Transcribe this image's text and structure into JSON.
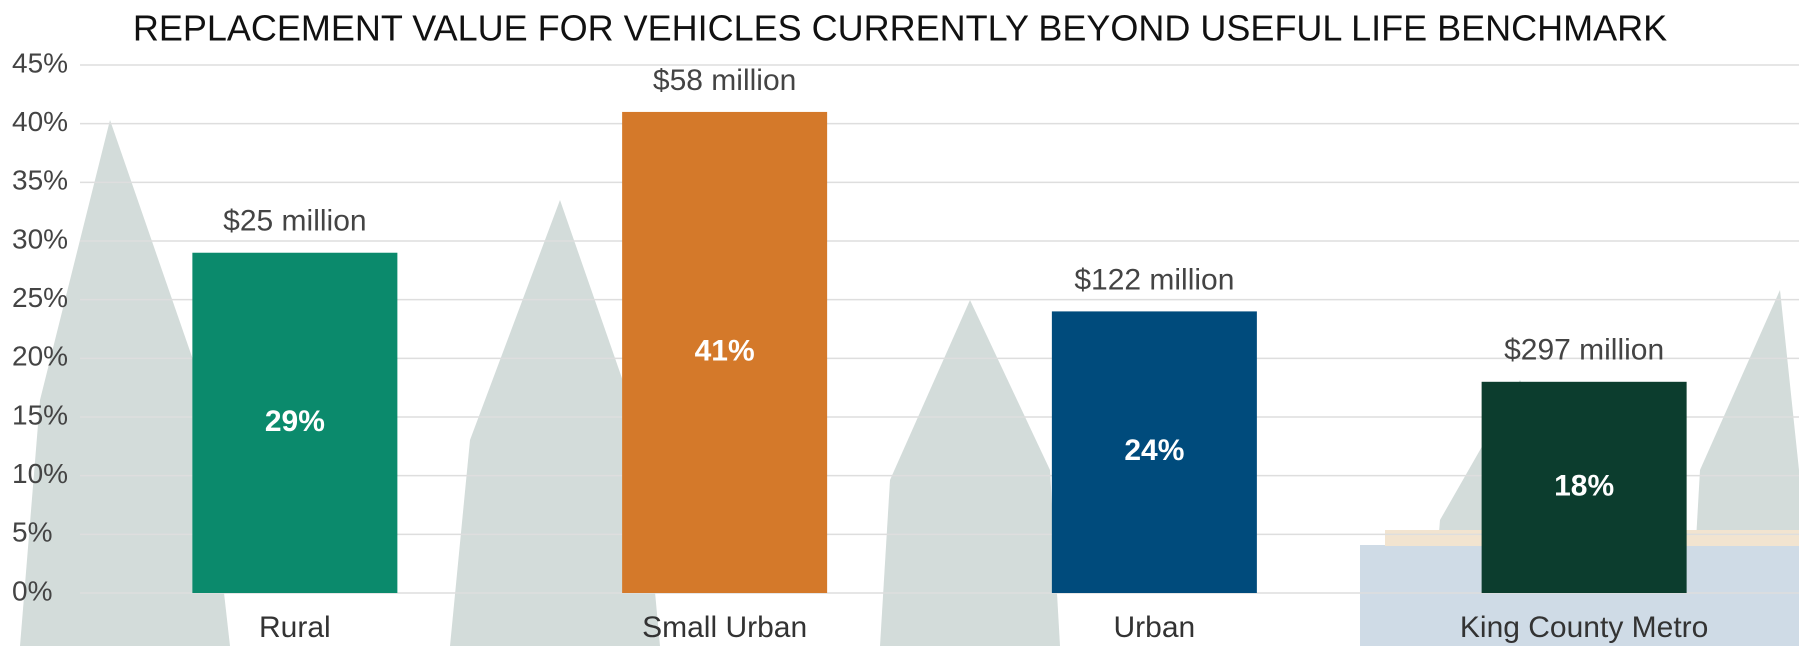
{
  "chart_data": {
    "type": "bar",
    "title": "REPLACEMENT VALUE FOR VEHICLES CURRENTLY BEYOND USEFUL LIFE BENCHMARK",
    "categories": [
      "Rural",
      "Small Urban",
      "Urban",
      "King County Metro"
    ],
    "values": [
      29,
      41,
      24,
      18
    ],
    "value_labels": [
      "29%",
      "41%",
      "24%",
      "18%"
    ],
    "annotations": [
      "$25 million",
      "$58 million",
      "$122 million",
      "$297 million"
    ],
    "colors": [
      "#0b8a6c",
      "#d4792a",
      "#004b7c",
      "#0c3d2e"
    ],
    "ylim": [
      0,
      45
    ],
    "yticks": [
      {
        "value": 0,
        "label": "0%"
      },
      {
        "value": 5,
        "label": "5%"
      },
      {
        "value": 10,
        "label": "10%"
      },
      {
        "value": 15,
        "label": "15%"
      },
      {
        "value": 20,
        "label": "20%"
      },
      {
        "value": 25,
        "label": "25%"
      },
      {
        "value": 30,
        "label": "30%"
      },
      {
        "value": 35,
        "label": "35%"
      },
      {
        "value": 40,
        "label": "40%"
      },
      {
        "value": 45,
        "label": "45%"
      }
    ],
    "grid": true
  }
}
